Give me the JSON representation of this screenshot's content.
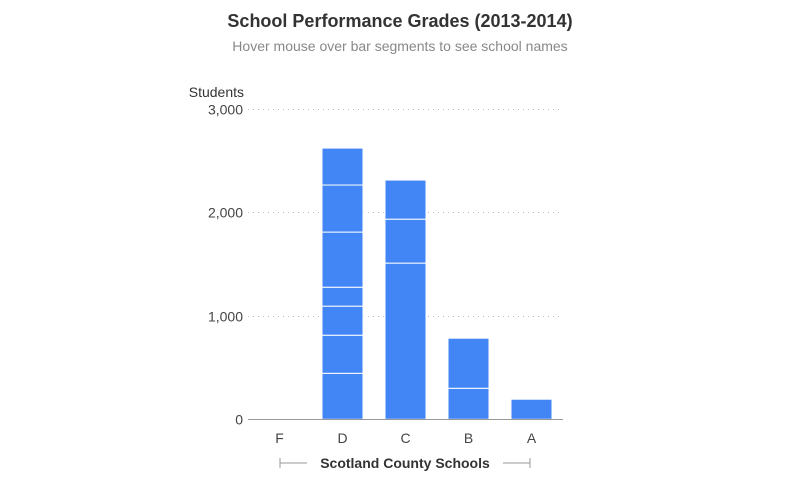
{
  "chart_data": {
    "type": "bar",
    "stacked": true,
    "title": "School Performance Grades (2013-2014)",
    "subtitle": "Hover mouse over bar segments to see school names",
    "xlabel": "Scotland County Schools",
    "ylabel": "Students",
    "ylim": [
      0,
      3000
    ],
    "yticks": [
      0,
      1000,
      2000,
      3000
    ],
    "ytick_labels": [
      "0",
      "1,000",
      "2,000",
      "3,000"
    ],
    "grid": true,
    "categories": [
      "F",
      "D",
      "C",
      "B",
      "A"
    ],
    "segments": [
      [],
      [
        445,
        368,
        281,
        183,
        533,
        455,
        357
      ],
      [
        1510,
        425,
        378
      ],
      [
        300,
        484
      ],
      [
        194
      ]
    ],
    "bar_color": "#4285f4"
  }
}
